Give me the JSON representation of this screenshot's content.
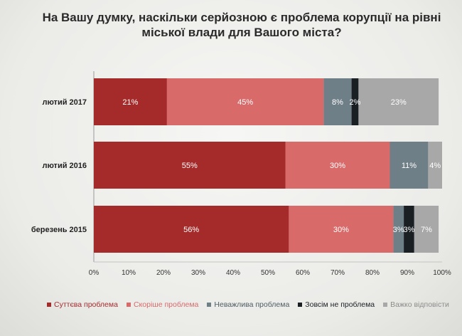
{
  "title_lines": [
    "На Вашу думку, наскільки серйозною є проблема корупції на рівні",
    "міської влади для Вашого міста?"
  ],
  "chart_data": {
    "type": "bar",
    "orientation": "horizontal",
    "stacked": true,
    "categories": [
      "лютий 2017",
      "лютий 2016",
      "березень 2015"
    ],
    "series": [
      {
        "name": "Суттєва проблема",
        "color": "#a52a2a",
        "values": [
          21,
          55,
          56
        ],
        "labels": [
          "21%",
          "55%",
          "56%"
        ]
      },
      {
        "name": "Скоріше проблема",
        "color": "#d86a6a",
        "values": [
          45,
          30,
          30
        ],
        "labels": [
          "45%",
          "30%",
          "30%"
        ]
      },
      {
        "name": "Неважлива проблема",
        "color": "#6f7f87",
        "values": [
          8,
          11,
          3
        ],
        "labels": [
          "8%",
          "11%",
          "3%"
        ]
      },
      {
        "name": "Зовсім не проблема",
        "color": "#1a1f24",
        "values": [
          2,
          0,
          3
        ],
        "labels": [
          "2%",
          "",
          "3%"
        ]
      },
      {
        "name": "Важко відповісти",
        "color": "#a8a8a8",
        "values": [
          23,
          4,
          7
        ],
        "labels": [
          "23%",
          "4%",
          "7%"
        ]
      }
    ],
    "xlim": [
      0,
      100
    ],
    "xticks": [
      "0%",
      "10%",
      "20%",
      "30%",
      "40%",
      "50%",
      "60%",
      "70%",
      "80%",
      "90%",
      "100%"
    ],
    "legend_position": "bottom"
  }
}
